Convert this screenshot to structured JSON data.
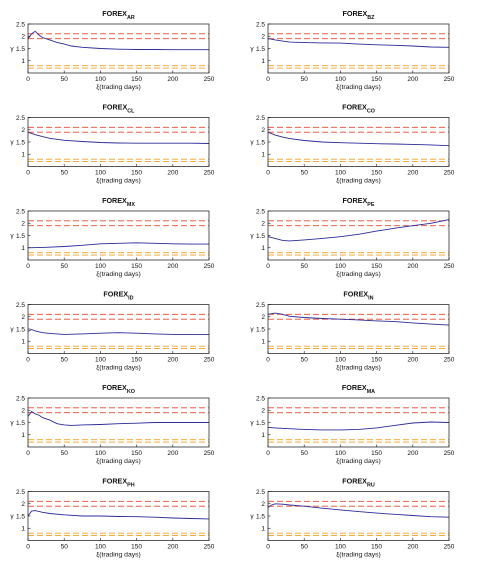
{
  "colors": {
    "axis": "#111111",
    "series": "#2b2b9a",
    "band_upper": "#e8482b",
    "band_lower": "#f0a020"
  },
  "chart_data": [
    {
      "type": "line",
      "title": "FOREX",
      "subscript": "AR",
      "xlabel": "ξ(trading days)",
      "ylabel": "γ",
      "xlim": [
        0,
        250
      ],
      "ylim": [
        0.5,
        2.5
      ],
      "xticks": [
        0,
        50,
        100,
        150,
        200,
        250
      ],
      "yticks": [
        1,
        1.5,
        2,
        2.5
      ],
      "thresholds": {
        "upper": [
          2.1,
          1.9
        ],
        "lower": [
          0.8,
          0.7
        ]
      },
      "series": [
        {
          "x": [
            0,
            5,
            10,
            15,
            20,
            30,
            40,
            50,
            60,
            75,
            100,
            125,
            150,
            175,
            200,
            225,
            250
          ],
          "y": [
            1.9,
            2.1,
            2.2,
            2.05,
            1.95,
            1.85,
            1.75,
            1.68,
            1.6,
            1.55,
            1.5,
            1.47,
            1.46,
            1.46,
            1.45,
            1.45,
            1.45
          ]
        }
      ]
    },
    {
      "type": "line",
      "title": "FOREX",
      "subscript": "BZ",
      "xlabel": "ξ(trading days)",
      "ylabel": "γ",
      "xlim": [
        0,
        250
      ],
      "ylim": [
        0.5,
        2.5
      ],
      "xticks": [
        0,
        50,
        100,
        150,
        200,
        250
      ],
      "yticks": [
        1,
        1.5,
        2,
        2.5
      ],
      "thresholds": {
        "upper": [
          2.1,
          1.9
        ],
        "lower": [
          0.8,
          0.7
        ]
      },
      "series": [
        {
          "x": [
            0,
            5,
            10,
            20,
            30,
            50,
            75,
            100,
            125,
            150,
            175,
            200,
            225,
            250
          ],
          "y": [
            1.9,
            1.88,
            1.85,
            1.8,
            1.76,
            1.74,
            1.73,
            1.72,
            1.68,
            1.65,
            1.63,
            1.6,
            1.56,
            1.55
          ]
        }
      ]
    },
    {
      "type": "line",
      "title": "FOREX",
      "subscript": "CL",
      "xlabel": "ξ(trading days)",
      "ylabel": "γ",
      "xlim": [
        0,
        250
      ],
      "ylim": [
        0.5,
        2.5
      ],
      "xticks": [
        0,
        50,
        100,
        150,
        200,
        250
      ],
      "yticks": [
        1,
        1.5,
        2,
        2.5
      ],
      "thresholds": {
        "upper": [
          2.1,
          1.9
        ],
        "lower": [
          0.8,
          0.7
        ]
      },
      "series": [
        {
          "x": [
            0,
            10,
            20,
            30,
            50,
            75,
            100,
            125,
            150,
            175,
            200,
            225,
            250
          ],
          "y": [
            1.9,
            1.8,
            1.72,
            1.65,
            1.57,
            1.52,
            1.48,
            1.46,
            1.45,
            1.45,
            1.45,
            1.45,
            1.44
          ]
        }
      ]
    },
    {
      "type": "line",
      "title": "FOREX",
      "subscript": "CO",
      "xlabel": "ξ(trading days)",
      "ylabel": "γ",
      "xlim": [
        0,
        250
      ],
      "ylim": [
        0.5,
        2.5
      ],
      "xticks": [
        0,
        50,
        100,
        150,
        200,
        250
      ],
      "yticks": [
        1,
        1.5,
        2,
        2.5
      ],
      "thresholds": {
        "upper": [
          2.1,
          1.9
        ],
        "lower": [
          0.8,
          0.7
        ]
      },
      "series": [
        {
          "x": [
            0,
            10,
            20,
            30,
            50,
            75,
            100,
            125,
            150,
            175,
            200,
            225,
            250
          ],
          "y": [
            1.9,
            1.78,
            1.7,
            1.64,
            1.56,
            1.5,
            1.47,
            1.45,
            1.43,
            1.42,
            1.4,
            1.38,
            1.35
          ]
        }
      ]
    },
    {
      "type": "line",
      "title": "FOREX",
      "subscript": "MX",
      "xlabel": "ξ(trading days)",
      "ylabel": "γ",
      "xlim": [
        0,
        250
      ],
      "ylim": [
        0.5,
        2.5
      ],
      "xticks": [
        0,
        50,
        100,
        150,
        200,
        250
      ],
      "yticks": [
        1,
        1.5,
        2,
        2.5
      ],
      "thresholds": {
        "upper": [
          2.1,
          1.9
        ],
        "lower": [
          0.8,
          0.7
        ]
      },
      "series": [
        {
          "x": [
            0,
            25,
            50,
            75,
            100,
            125,
            150,
            175,
            200,
            225,
            250
          ],
          "y": [
            1.0,
            1.02,
            1.05,
            1.1,
            1.16,
            1.18,
            1.2,
            1.18,
            1.16,
            1.15,
            1.15
          ]
        }
      ]
    },
    {
      "type": "line",
      "title": "FOREX",
      "subscript": "PE",
      "xlabel": "ξ(trading days)",
      "ylabel": "γ",
      "xlim": [
        0,
        250
      ],
      "ylim": [
        0.5,
        2.5
      ],
      "xticks": [
        0,
        50,
        100,
        150,
        200,
        250
      ],
      "yticks": [
        1,
        1.5,
        2,
        2.5
      ],
      "thresholds": {
        "upper": [
          2.1,
          1.9
        ],
        "lower": [
          0.8,
          0.7
        ]
      },
      "series": [
        {
          "x": [
            0,
            10,
            20,
            30,
            50,
            75,
            100,
            125,
            150,
            175,
            200,
            225,
            250
          ],
          "y": [
            1.45,
            1.38,
            1.3,
            1.28,
            1.32,
            1.38,
            1.45,
            1.55,
            1.68,
            1.8,
            1.9,
            2.0,
            2.15
          ]
        }
      ]
    },
    {
      "type": "line",
      "title": "FOREX",
      "subscript": "ID",
      "xlabel": "ξ(trading days)",
      "ylabel": "γ",
      "xlim": [
        0,
        250
      ],
      "ylim": [
        0.5,
        2.5
      ],
      "xticks": [
        0,
        50,
        100,
        150,
        200,
        250
      ],
      "yticks": [
        1,
        1.5,
        2,
        2.5
      ],
      "thresholds": {
        "upper": [
          2.1,
          1.9
        ],
        "lower": [
          0.8,
          0.7
        ]
      },
      "series": [
        {
          "x": [
            0,
            5,
            10,
            20,
            30,
            50,
            75,
            100,
            125,
            150,
            175,
            200,
            225,
            250
          ],
          "y": [
            1.4,
            1.48,
            1.42,
            1.35,
            1.32,
            1.28,
            1.3,
            1.33,
            1.35,
            1.33,
            1.3,
            1.28,
            1.27,
            1.27
          ]
        }
      ]
    },
    {
      "type": "line",
      "title": "FOREX",
      "subscript": "IN",
      "xlabel": "ξ(trading days)",
      "ylabel": "γ",
      "xlim": [
        0,
        250
      ],
      "ylim": [
        0.5,
        2.5
      ],
      "xticks": [
        0,
        50,
        100,
        150,
        200,
        250
      ],
      "yticks": [
        1,
        1.5,
        2,
        2.5
      ],
      "thresholds": {
        "upper": [
          2.1,
          1.9
        ],
        "lower": [
          0.8,
          0.7
        ]
      },
      "series": [
        {
          "x": [
            0,
            10,
            20,
            30,
            50,
            75,
            100,
            125,
            150,
            175,
            200,
            225,
            250
          ],
          "y": [
            2.1,
            2.15,
            2.1,
            2.02,
            1.97,
            1.93,
            1.9,
            1.87,
            1.83,
            1.8,
            1.75,
            1.7,
            1.66
          ]
        }
      ]
    },
    {
      "type": "line",
      "title": "FOREX",
      "subscript": "KO",
      "xlabel": "ξ(trading days)",
      "ylabel": "γ",
      "xlim": [
        0,
        250
      ],
      "ylim": [
        0.5,
        2.5
      ],
      "xticks": [
        0,
        50,
        100,
        150,
        200,
        250
      ],
      "yticks": [
        1,
        1.5,
        2,
        2.5
      ],
      "thresholds": {
        "upper": [
          2.1,
          1.9
        ],
        "lower": [
          0.8,
          0.7
        ]
      },
      "series": [
        {
          "x": [
            0,
            5,
            10,
            15,
            20,
            30,
            40,
            50,
            60,
            75,
            100,
            125,
            150,
            175,
            200,
            225,
            250
          ],
          "y": [
            1.75,
            1.95,
            1.85,
            1.8,
            1.7,
            1.6,
            1.45,
            1.4,
            1.38,
            1.4,
            1.42,
            1.45,
            1.47,
            1.5,
            1.5,
            1.5,
            1.5
          ]
        }
      ]
    },
    {
      "type": "line",
      "title": "FOREX",
      "subscript": "MA",
      "xlabel": "ξ(trading days)",
      "ylabel": "γ",
      "xlim": [
        0,
        250
      ],
      "ylim": [
        0.5,
        2.5
      ],
      "xticks": [
        0,
        50,
        100,
        150,
        200,
        250
      ],
      "yticks": [
        1,
        1.5,
        2,
        2.5
      ],
      "thresholds": {
        "upper": [
          2.1,
          1.9
        ],
        "lower": [
          0.8,
          0.7
        ]
      },
      "series": [
        {
          "x": [
            0,
            10,
            25,
            50,
            75,
            100,
            125,
            150,
            175,
            200,
            225,
            250
          ],
          "y": [
            1.3,
            1.28,
            1.25,
            1.22,
            1.2,
            1.2,
            1.22,
            1.28,
            1.38,
            1.48,
            1.52,
            1.5
          ]
        }
      ]
    },
    {
      "type": "line",
      "title": "FOREX",
      "subscript": "PH",
      "xlabel": "ξ(trading days)",
      "ylabel": "γ",
      "xlim": [
        0,
        250
      ],
      "ylim": [
        0.5,
        2.5
      ],
      "xticks": [
        0,
        50,
        100,
        150,
        200,
        250
      ],
      "yticks": [
        1,
        1.5,
        2,
        2.5
      ],
      "thresholds": {
        "upper": [
          2.1,
          1.9
        ],
        "lower": [
          0.8,
          0.7
        ]
      },
      "series": [
        {
          "x": [
            0,
            5,
            10,
            20,
            30,
            50,
            75,
            100,
            125,
            150,
            175,
            200,
            225,
            250
          ],
          "y": [
            1.5,
            1.7,
            1.72,
            1.65,
            1.6,
            1.55,
            1.5,
            1.5,
            1.48,
            1.47,
            1.45,
            1.42,
            1.4,
            1.38
          ]
        }
      ]
    },
    {
      "type": "line",
      "title": "FOREX",
      "subscript": "RU",
      "xlabel": "ξ(trading days)",
      "ylabel": "γ",
      "xlim": [
        0,
        250
      ],
      "ylim": [
        0.5,
        2.5
      ],
      "xticks": [
        0,
        50,
        100,
        150,
        200,
        250
      ],
      "yticks": [
        1,
        1.5,
        2,
        2.5
      ],
      "thresholds": {
        "upper": [
          2.1,
          1.9
        ],
        "lower": [
          0.8,
          0.7
        ]
      },
      "series": [
        {
          "x": [
            0,
            5,
            10,
            20,
            30,
            50,
            75,
            100,
            125,
            150,
            175,
            200,
            225,
            250
          ],
          "y": [
            1.85,
            1.95,
            2.0,
            1.98,
            1.95,
            1.9,
            1.82,
            1.75,
            1.68,
            1.62,
            1.57,
            1.52,
            1.47,
            1.45
          ]
        }
      ]
    }
  ]
}
